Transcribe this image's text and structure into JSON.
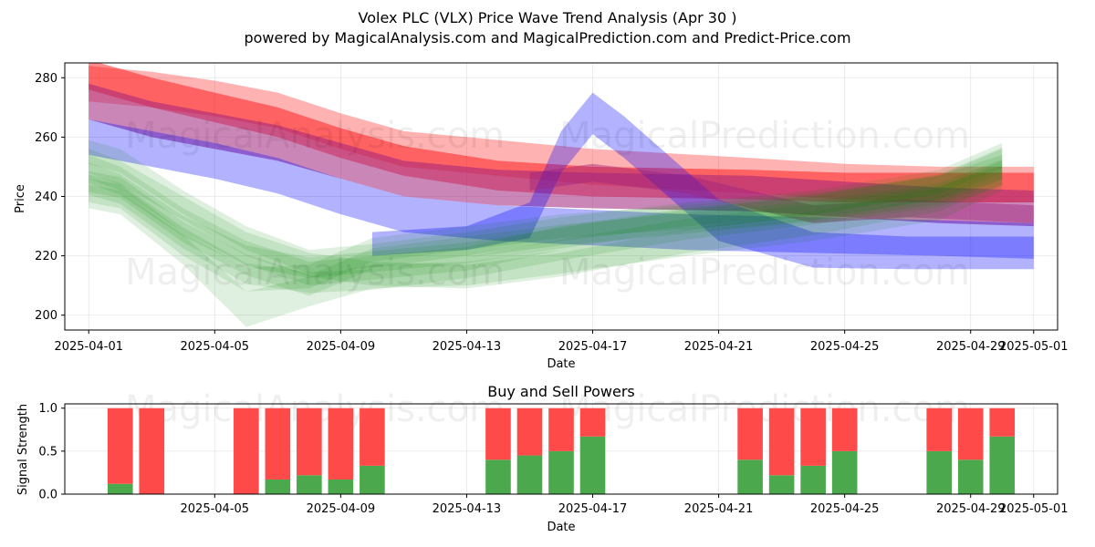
{
  "title_line1": "Volex PLC (VLX) Price Wave Trend Analysis (Apr 30 )",
  "title_line2": "powered by MagicalAnalysis.com and MagicalPrediction.com and Predict-Price.com",
  "watermarks": [
    "MagicalAnalysis.com",
    "MagicalPrediction.com"
  ],
  "colors": {
    "red": "#ff0000",
    "blue": "#0000ff",
    "green": "#008000",
    "purple": "#a0237d",
    "sell": "#ff4a4a",
    "buy": "#4ca84c"
  },
  "chart_data": [
    {
      "type": "area",
      "xlabel": "Date",
      "ylabel": "Price",
      "ylim": [
        195,
        285
      ],
      "yticks": [
        200,
        220,
        240,
        260,
        280
      ],
      "xticks": [
        "2025-04-01",
        "2025-04-05",
        "2025-04-09",
        "2025-04-13",
        "2025-04-17",
        "2025-04-21",
        "2025-04-25",
        "2025-04-29",
        "2025-05-01"
      ],
      "grid": true,
      "bands": [
        {
          "color": "red",
          "opacity": 0.3,
          "x": [
            "2025-04-01",
            "2025-04-03",
            "2025-04-05",
            "2025-04-07",
            "2025-04-09",
            "2025-04-11",
            "2025-04-14",
            "2025-04-17",
            "2025-04-22",
            "2025-04-25",
            "2025-04-28",
            "2025-05-01"
          ],
          "mid": [
            278,
            276,
            273,
            269,
            262,
            256,
            253,
            250,
            247,
            245,
            244,
            244
          ],
          "width": [
            12,
            12,
            12,
            12,
            12,
            12,
            12,
            12,
            12,
            12,
            12,
            12
          ]
        },
        {
          "color": "red",
          "opacity": 0.45,
          "x": [
            "2025-04-01",
            "2025-04-03",
            "2025-04-05",
            "2025-04-07",
            "2025-04-09",
            "2025-04-11",
            "2025-04-14",
            "2025-04-17",
            "2025-04-22",
            "2025-04-25",
            "2025-04-28",
            "2025-05-01"
          ],
          "mid": [
            281,
            275,
            270,
            265,
            258,
            252,
            247,
            245,
            244,
            243,
            243,
            243
          ],
          "width": [
            10,
            10,
            10,
            10,
            10,
            10,
            10,
            10,
            10,
            10,
            10,
            10
          ]
        },
        {
          "color": "purple",
          "opacity": 0.55,
          "x": [
            "2025-04-01",
            "2025-04-03",
            "2025-04-05",
            "2025-04-07",
            "2025-04-09",
            "2025-04-11",
            "2025-04-14",
            "2025-04-17",
            "2025-04-22",
            "2025-04-25",
            "2025-04-28",
            "2025-05-01"
          ],
          "mid": [
            272,
            266,
            262,
            258,
            252,
            246,
            243,
            242,
            241,
            239,
            237,
            236
          ],
          "width": [
            12,
            12,
            12,
            12,
            12,
            12,
            12,
            12,
            12,
            12,
            12,
            12
          ]
        },
        {
          "color": "blue",
          "opacity": 0.3,
          "x": [
            "2025-04-01",
            "2025-04-03",
            "2025-04-05",
            "2025-04-07",
            "2025-04-09",
            "2025-04-11",
            "2025-04-14",
            "2025-04-16",
            "2025-04-20",
            "2025-04-24",
            "2025-04-28",
            "2025-05-01"
          ],
          "mid": [
            260,
            256,
            252,
            247,
            240,
            234,
            231,
            230,
            228,
            227,
            226,
            225
          ],
          "width": [
            12,
            12,
            12,
            12,
            12,
            12,
            12,
            12,
            12,
            12,
            12,
            12
          ]
        },
        {
          "color": "blue",
          "opacity": 0.3,
          "x": [
            "2025-04-10",
            "2025-04-13",
            "2025-04-15",
            "2025-04-16",
            "2025-04-17",
            "2025-04-18",
            "2025-04-21",
            "2025-04-24",
            "2025-04-27",
            "2025-05-01"
          ],
          "mid": [
            224,
            226,
            232,
            255,
            268,
            260,
            232,
            222,
            221,
            221
          ],
          "width": [
            8,
            8,
            12,
            14,
            14,
            14,
            14,
            12,
            11,
            11
          ]
        },
        {
          "color": "purple",
          "opacity": 0.45,
          "x": [
            "2025-04-15",
            "2025-04-17",
            "2025-04-20",
            "2025-04-22",
            "2025-04-24",
            "2025-04-27",
            "2025-05-01"
          ],
          "mid": [
            245,
            248,
            244,
            239,
            234,
            236,
            234
          ],
          "width": [
            6,
            6,
            6,
            6,
            6,
            6,
            6
          ]
        },
        {
          "color": "green",
          "opacity": 0.12,
          "x": [
            "2025-04-01",
            "2025-04-02",
            "2025-04-04",
            "2025-04-06",
            "2025-04-08",
            "2025-04-10",
            "2025-04-13",
            "2025-04-16",
            "2025-04-20",
            "2025-04-24",
            "2025-04-28",
            "2025-04-30"
          ],
          "mid": [
            255,
            252,
            238,
            226,
            218,
            220,
            224,
            229,
            234,
            238,
            245,
            254
          ],
          "width": [
            8,
            8,
            8,
            8,
            8,
            8,
            8,
            8,
            8,
            8,
            8,
            8
          ]
        },
        {
          "color": "green",
          "opacity": 0.12,
          "x": [
            "2025-04-01",
            "2025-04-02",
            "2025-04-04",
            "2025-04-06",
            "2025-04-08",
            "2025-04-10",
            "2025-04-13",
            "2025-04-16",
            "2025-04-20",
            "2025-04-24",
            "2025-04-28",
            "2025-04-30"
          ],
          "mid": [
            250,
            246,
            232,
            221,
            214,
            216,
            219,
            226,
            232,
            236,
            243,
            252
          ],
          "width": [
            8,
            8,
            8,
            8,
            8,
            8,
            8,
            8,
            8,
            8,
            8,
            8
          ]
        },
        {
          "color": "green",
          "opacity": 0.12,
          "x": [
            "2025-04-01",
            "2025-04-02",
            "2025-04-04",
            "2025-04-06",
            "2025-04-08",
            "2025-04-10",
            "2025-04-13",
            "2025-04-16",
            "2025-04-20",
            "2025-04-24",
            "2025-04-28",
            "2025-04-30"
          ],
          "mid": [
            245,
            243,
            228,
            217,
            210,
            219,
            223,
            227,
            231,
            235,
            241,
            249
          ],
          "width": [
            7,
            7,
            7,
            7,
            7,
            7,
            7,
            7,
            7,
            7,
            7,
            7
          ]
        },
        {
          "color": "green",
          "opacity": 0.12,
          "x": [
            "2025-04-01",
            "2025-04-02",
            "2025-04-04",
            "2025-04-06",
            "2025-04-08",
            "2025-04-10",
            "2025-04-13",
            "2025-04-16",
            "2025-04-20",
            "2025-04-24",
            "2025-04-28",
            "2025-04-30"
          ],
          "mid": [
            242,
            240,
            224,
            212,
            213,
            222,
            226,
            230,
            233,
            237,
            243,
            250
          ],
          "width": [
            8,
            8,
            8,
            8,
            8,
            8,
            8,
            8,
            8,
            8,
            8,
            8
          ]
        },
        {
          "color": "green",
          "opacity": 0.12,
          "x": [
            "2025-04-01",
            "2025-04-02",
            "2025-04-04",
            "2025-04-06",
            "2025-04-08",
            "2025-04-10",
            "2025-04-13",
            "2025-04-16",
            "2025-04-20",
            "2025-04-24",
            "2025-04-28",
            "2025-04-30"
          ],
          "mid": [
            240,
            238,
            222,
            202,
            208,
            213,
            214,
            218,
            224,
            229,
            236,
            246
          ],
          "width": [
            8,
            8,
            10,
            12,
            10,
            8,
            8,
            8,
            8,
            8,
            8,
            8
          ]
        },
        {
          "color": "green",
          "opacity": 0.12,
          "x": [
            "2025-04-01",
            "2025-04-02",
            "2025-04-04",
            "2025-04-06",
            "2025-04-08",
            "2025-04-10",
            "2025-04-13",
            "2025-04-16",
            "2025-04-20",
            "2025-04-24",
            "2025-04-28",
            "2025-04-30"
          ],
          "mid": [
            252,
            248,
            236,
            224,
            217,
            214,
            213,
            217,
            225,
            231,
            239,
            248
          ],
          "width": [
            8,
            8,
            8,
            8,
            8,
            8,
            8,
            8,
            8,
            8,
            8,
            8
          ]
        },
        {
          "color": "green",
          "opacity": 0.12,
          "x": [
            "2025-04-01",
            "2025-04-02",
            "2025-04-04",
            "2025-04-06",
            "2025-04-08",
            "2025-04-10",
            "2025-04-13",
            "2025-04-16",
            "2025-04-20",
            "2025-04-24",
            "2025-04-28",
            "2025-04-30"
          ],
          "mid": [
            248,
            244,
            230,
            220,
            216,
            218,
            221,
            226,
            232,
            237,
            244,
            253
          ],
          "width": [
            7,
            7,
            7,
            7,
            7,
            7,
            7,
            7,
            7,
            7,
            7,
            7
          ]
        },
        {
          "color": "green",
          "opacity": 0.12,
          "x": [
            "2025-04-01",
            "2025-04-02",
            "2025-04-04",
            "2025-04-06",
            "2025-04-08",
            "2025-04-10",
            "2025-04-13",
            "2025-04-16",
            "2025-04-20",
            "2025-04-24",
            "2025-04-28",
            "2025-04-30"
          ],
          "mid": [
            244,
            241,
            226,
            214,
            211,
            212,
            216,
            222,
            229,
            234,
            240,
            247
          ],
          "width": [
            7,
            7,
            7,
            7,
            7,
            7,
            7,
            7,
            7,
            7,
            7,
            7
          ]
        }
      ]
    },
    {
      "type": "bar",
      "title": "Buy and Sell Powers",
      "xlabel": "Date",
      "ylabel": "Signal Strength",
      "ylim": [
        0,
        1.05
      ],
      "yticks": [
        0.0,
        0.5,
        1.0
      ],
      "xticks": [
        "2025-04-05",
        "2025-04-09",
        "2025-04-13",
        "2025-04-17",
        "2025-04-21",
        "2025-04-25",
        "2025-04-29",
        "2025-05-01"
      ],
      "grid": true,
      "dates": [
        "2025-04-02",
        "2025-04-03",
        "2025-04-06",
        "2025-04-07",
        "2025-04-08",
        "2025-04-09",
        "2025-04-10",
        "2025-04-14",
        "2025-04-15",
        "2025-04-16",
        "2025-04-17",
        "2025-04-22",
        "2025-04-23",
        "2025-04-24",
        "2025-04-25",
        "2025-04-28",
        "2025-04-29",
        "2025-04-30"
      ],
      "series": [
        {
          "name": "Buy",
          "values": [
            0.12,
            0.0,
            0.0,
            0.17,
            0.22,
            0.17,
            0.33,
            0.4,
            0.45,
            0.5,
            0.67,
            0.4,
            0.22,
            0.33,
            0.5,
            0.5,
            0.4,
            0.67
          ]
        },
        {
          "name": "Sell",
          "values": [
            0.88,
            1.0,
            1.0,
            0.83,
            0.78,
            0.83,
            0.67,
            0.6,
            0.55,
            0.5,
            0.33,
            0.6,
            0.78,
            0.67,
            0.5,
            0.5,
            0.6,
            0.33
          ]
        }
      ]
    }
  ]
}
